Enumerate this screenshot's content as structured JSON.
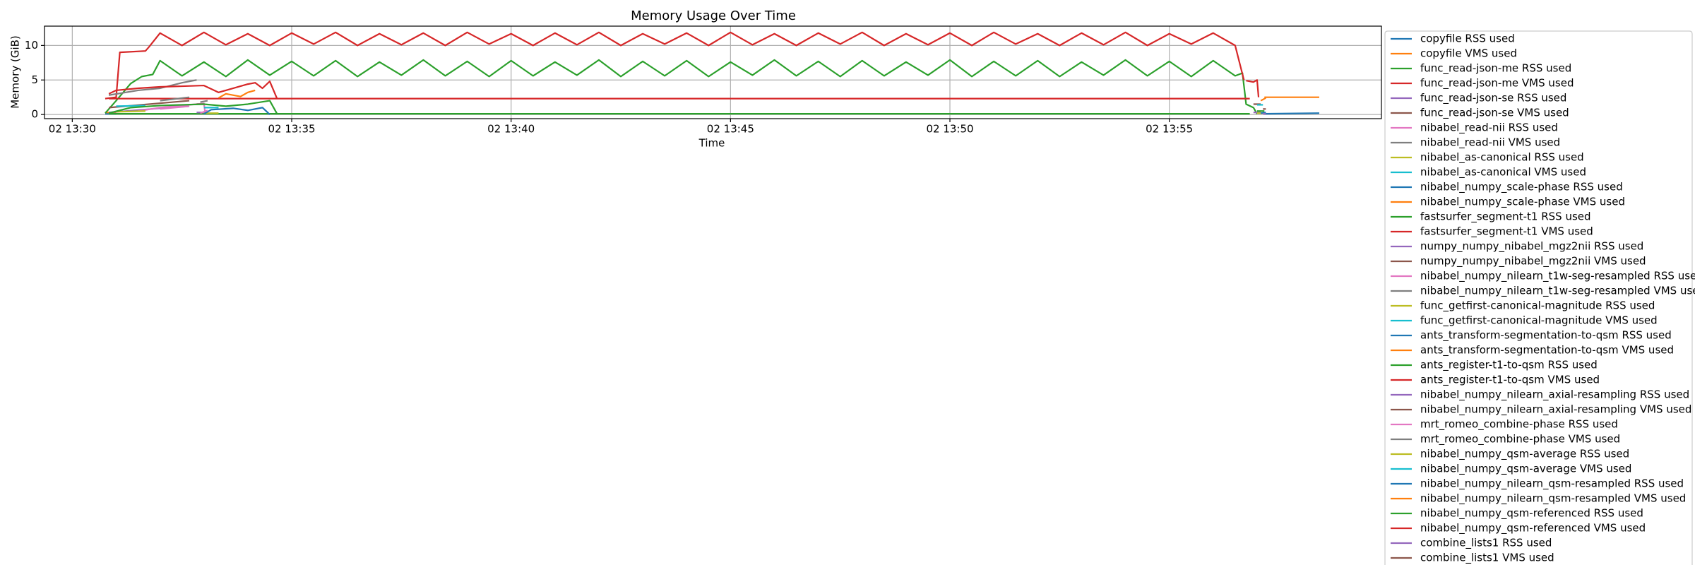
{
  "chart_data": {
    "type": "line",
    "title": "Memory Usage Over Time",
    "xlabel": "Time",
    "ylabel": "Memory (GiB)",
    "xlim": [
      "02 13:29:22",
      "02 13:59:50"
    ],
    "xticks": [
      "02 13:30",
      "02 13:35",
      "02 13:40",
      "02 13:45",
      "02 13:50",
      "02 13:55"
    ],
    "ylim": [
      -0.6,
      12.8
    ],
    "yticks": [
      0,
      5,
      10
    ],
    "grid": true,
    "legend": "outside right",
    "series": [
      {
        "name": "copyfile RSS used",
        "color": "#1f77b4",
        "x": [
          "02 13:30:45",
          "02 13:31:00"
        ],
        "values": [
          0.1,
          0.1
        ]
      },
      {
        "name": "copyfile VMS used",
        "color": "#ff7f0e",
        "x": [
          "02 13:30:45",
          "02 13:31:00"
        ],
        "values": [
          0.3,
          0.3
        ]
      },
      {
        "name": "func_read-json-me RSS used",
        "color": "#2ca02c",
        "x": [
          "02 13:30:45",
          "02 13:31:00",
          "02 13:31:20",
          "02 13:31:35",
          "02 13:31:50",
          "02 13:32:00",
          "02 13:32:30",
          "02 13:33:00",
          "02 13:33:30",
          "02 13:34:00",
          "02 13:34:30",
          "02 13:35:00",
          "02 13:35:30",
          "02 13:36:00",
          "02 13:36:30",
          "02 13:37:00",
          "02 13:37:30",
          "02 13:38:00",
          "02 13:38:30",
          "02 13:39:00",
          "02 13:39:30",
          "02 13:40:00",
          "02 13:40:30",
          "02 13:41:00",
          "02 13:41:30",
          "02 13:42:00",
          "02 13:42:30",
          "02 13:43:00",
          "02 13:43:30",
          "02 13:44:00",
          "02 13:44:30",
          "02 13:45:00",
          "02 13:45:30",
          "02 13:46:00",
          "02 13:46:30",
          "02 13:47:00",
          "02 13:47:30",
          "02 13:48:00",
          "02 13:48:30",
          "02 13:49:00",
          "02 13:49:30",
          "02 13:50:00",
          "02 13:50:30",
          "02 13:51:00",
          "02 13:51:30",
          "02 13:52:00",
          "02 13:52:30",
          "02 13:53:00",
          "02 13:53:30",
          "02 13:54:00",
          "02 13:54:30",
          "02 13:55:00",
          "02 13:55:30",
          "02 13:56:00",
          "02 13:56:30",
          "02 13:56:40",
          "02 13:56:45",
          "02 13:56:55",
          "02 13:57:00"
        ],
        "values": [
          0.2,
          2.0,
          4.5,
          5.5,
          5.8,
          7.8,
          5.6,
          7.6,
          5.5,
          7.9,
          5.7,
          7.7,
          5.6,
          7.8,
          5.5,
          7.6,
          5.7,
          7.9,
          5.6,
          7.7,
          5.5,
          7.8,
          5.6,
          7.6,
          5.7,
          7.9,
          5.5,
          7.7,
          5.6,
          7.8,
          5.5,
          7.6,
          5.7,
          7.9,
          5.6,
          7.7,
          5.5,
          7.8,
          5.6,
          7.6,
          5.7,
          7.9,
          5.5,
          7.7,
          5.6,
          7.8,
          5.5,
          7.6,
          5.7,
          7.9,
          5.6,
          7.7,
          5.5,
          7.8,
          5.6,
          6.0,
          1.5,
          1.0,
          0.1
        ]
      },
      {
        "name": "func_read-json-me VMS used",
        "color": "#d62728",
        "x": [
          "02 13:30:45",
          "02 13:31:00",
          "02 13:31:05",
          "02 13:31:40",
          "02 13:31:45",
          "02 13:32:00",
          "02 13:32:30",
          "02 13:33:00",
          "02 13:33:30",
          "02 13:34:00",
          "02 13:34:30",
          "02 13:35:00",
          "02 13:35:30",
          "02 13:36:00",
          "02 13:36:30",
          "02 13:37:00",
          "02 13:37:30",
          "02 13:38:00",
          "02 13:38:30",
          "02 13:39:00",
          "02 13:39:30",
          "02 13:40:00",
          "02 13:40:30",
          "02 13:41:00",
          "02 13:41:30",
          "02 13:42:00",
          "02 13:42:30",
          "02 13:43:00",
          "02 13:43:30",
          "02 13:44:00",
          "02 13:44:30",
          "02 13:45:00",
          "02 13:45:30",
          "02 13:46:00",
          "02 13:46:30",
          "02 13:47:00",
          "02 13:47:30",
          "02 13:48:00",
          "02 13:48:30",
          "02 13:49:00",
          "02 13:49:30",
          "02 13:50:00",
          "02 13:50:30",
          "02 13:51:00",
          "02 13:51:30",
          "02 13:52:00",
          "02 13:52:30",
          "02 13:53:00",
          "02 13:53:30",
          "02 13:54:00",
          "02 13:54:30",
          "02 13:55:00",
          "02 13:55:30",
          "02 13:56:00",
          "02 13:56:30",
          "02 13:56:42"
        ],
        "values": [
          2.3,
          2.5,
          9.0,
          9.2,
          9.8,
          11.8,
          10.0,
          11.9,
          10.1,
          11.7,
          10.0,
          11.8,
          10.2,
          11.9,
          10.0,
          11.7,
          10.1,
          11.8,
          10.0,
          11.9,
          10.2,
          11.7,
          10.0,
          11.8,
          10.1,
          11.9,
          10.0,
          11.7,
          10.2,
          11.8,
          10.0,
          11.9,
          10.1,
          11.7,
          10.0,
          11.8,
          10.2,
          11.9,
          10.0,
          11.7,
          10.1,
          11.8,
          10.0,
          11.9,
          10.2,
          11.7,
          10.0,
          11.8,
          10.1,
          11.9,
          10.0,
          11.7,
          10.2,
          11.8,
          10.0,
          5.0
        ]
      },
      {
        "name": "func_read-json-se RSS used",
        "color": "#9467bd",
        "x": [
          "02 13:30:50",
          "02 13:32:00",
          "02 13:32:40"
        ],
        "values": [
          0.3,
          0.9,
          1.2
        ]
      },
      {
        "name": "func_read-json-se VMS used",
        "color": "#8c564b",
        "x": [
          "02 13:30:50",
          "02 13:32:40"
        ],
        "values": [
          1.0,
          2.0
        ]
      },
      {
        "name": "nibabel_read-nii RSS used",
        "color": "#e377c2",
        "x": [
          "02 13:31:30",
          "02 13:32:00",
          "02 13:33:00",
          "02 13:33:02"
        ],
        "values": [
          0.5,
          1.0,
          1.6,
          0
        ]
      },
      {
        "name": "nibabel_read-nii VMS used",
        "color": "#7f7f7f",
        "x": [
          "02 13:30:50",
          "02 13:31:30",
          "02 13:32:00",
          "02 13:32:30",
          "02 13:32:50"
        ],
        "values": [
          2.8,
          3.5,
          3.8,
          4.6,
          5.0
        ]
      },
      {
        "name": "nibabel_as-canonical RSS used",
        "color": "#bcbd22",
        "x": [
          "02 13:31:00",
          "02 13:31:40"
        ],
        "values": [
          0.4,
          0.5
        ]
      },
      {
        "name": "nibabel_as-canonical VMS used",
        "color": "#17becf",
        "x": [
          "02 13:31:00",
          "02 13:31:40"
        ],
        "values": [
          1.2,
          1.3
        ]
      },
      {
        "name": "nibabel_numpy_scale-phase RSS used",
        "color": "#1f77b4",
        "x": [
          "02 13:57:10",
          "02 13:58:25"
        ],
        "values": [
          0.1,
          0.2
        ]
      },
      {
        "name": "nibabel_numpy_scale-phase VMS used",
        "color": "#ff7f0e",
        "x": [
          "02 13:57:10",
          "02 13:58:25"
        ],
        "values": [
          2.5,
          2.5
        ]
      },
      {
        "name": "fastsurfer_segment-t1 RSS used",
        "color": "#2ca02c",
        "x": [
          "02 13:30:50",
          "02 13:56:50"
        ],
        "values": [
          0.1,
          0.1
        ]
      },
      {
        "name": "fastsurfer_segment-t1 VMS used",
        "color": "#d62728",
        "x": [
          "02 13:30:50",
          "02 13:56:50"
        ],
        "values": [
          2.3,
          2.3
        ]
      },
      {
        "name": "numpy_numpy_nibabel_mgz2nii RSS used",
        "color": "#9467bd",
        "x": [
          "02 13:32:50",
          "02 13:33:00"
        ],
        "values": [
          0.3,
          0.3
        ]
      },
      {
        "name": "numpy_numpy_nibabel_mgz2nii VMS used",
        "color": "#8c564b",
        "x": [
          "02 13:32:50",
          "02 13:33:00"
        ],
        "values": [
          1.5,
          1.5
        ]
      },
      {
        "name": "nibabel_numpy_nilearn_t1w-seg-resampled RSS used",
        "color": "#e377c2",
        "x": [
          "02 13:32:00",
          "02 13:32:40"
        ],
        "values": [
          0.8,
          1.2
        ]
      },
      {
        "name": "nibabel_numpy_nilearn_t1w-seg-resampled VMS used",
        "color": "#7f7f7f",
        "x": [
          "02 13:32:00",
          "02 13:32:40"
        ],
        "values": [
          2.0,
          2.5
        ]
      },
      {
        "name": "func_getfirst-canonical-magnitude RSS used",
        "color": "#bcbd22",
        "x": [
          "02 13:33:00",
          "02 13:33:20"
        ],
        "values": [
          0.2,
          0.2
        ]
      },
      {
        "name": "func_getfirst-canonical-magnitude VMS used",
        "color": "#17becf",
        "x": [
          "02 13:33:00",
          "02 13:33:20"
        ],
        "values": [
          1.0,
          1.0
        ]
      },
      {
        "name": "ants_transform-segmentation-to-qsm RSS used",
        "color": "#1f77b4",
        "x": [
          "02 13:33:00",
          "02 13:33:10",
          "02 13:33:40",
          "02 13:34:00",
          "02 13:34:20",
          "02 13:34:30"
        ],
        "values": [
          0.1,
          0.7,
          0.9,
          0.6,
          1.0,
          0
        ]
      },
      {
        "name": "ants_transform-segmentation-to-qsm VMS used",
        "color": "#ff7f0e",
        "x": [
          "02 13:33:20",
          "02 13:33:30",
          "02 13:33:50",
          "02 13:34:00",
          "02 13:34:10"
        ],
        "values": [
          2.4,
          3.0,
          2.6,
          3.2,
          3.5
        ]
      },
      {
        "name": "ants_register-t1-to-qsm RSS used",
        "color": "#2ca02c",
        "x": [
          "02 13:30:50",
          "02 13:31:20",
          "02 13:32:00",
          "02 13:33:00",
          "02 13:33:30",
          "02 13:34:00",
          "02 13:34:30",
          "02 13:34:40"
        ],
        "values": [
          0.2,
          1.0,
          1.3,
          1.5,
          1.2,
          1.5,
          2.0,
          0.1
        ]
      },
      {
        "name": "ants_register-t1-to-qsm VMS used",
        "color": "#d62728",
        "x": [
          "02 13:30:50",
          "02 13:31:00",
          "02 13:31:30",
          "02 13:32:00",
          "02 13:33:00",
          "02 13:33:20",
          "02 13:33:30",
          "02 13:34:00",
          "02 13:34:10",
          "02 13:34:20",
          "02 13:34:30",
          "02 13:34:40"
        ],
        "values": [
          3.0,
          3.5,
          3.8,
          4.0,
          4.2,
          3.2,
          3.5,
          4.4,
          4.6,
          3.8,
          4.8,
          2.3
        ]
      },
      {
        "name": "nibabel_numpy_nilearn_axial-resampling RSS used",
        "color": "#9467bd",
        "x": [
          "02 13:56:55",
          "02 13:57:05"
        ],
        "values": [
          0.3,
          0.3
        ]
      },
      {
        "name": "nibabel_numpy_nilearn_axial-resampling VMS used",
        "color": "#8c564b",
        "x": [
          "02 13:56:55",
          "02 13:57:05"
        ],
        "values": [
          1.5,
          1.5
        ]
      },
      {
        "name": "mrt_romeo_combine-phase RSS used",
        "color": "#e377c2",
        "x": [
          "02 13:32:55",
          "02 13:33:05"
        ],
        "values": [
          0.2,
          0.6
        ]
      },
      {
        "name": "mrt_romeo_combine-phase VMS used",
        "color": "#7f7f7f",
        "x": [
          "02 13:32:55",
          "02 13:33:05"
        ],
        "values": [
          1.8,
          2.0
        ]
      },
      {
        "name": "nibabel_numpy_qsm-average RSS used",
        "color": "#bcbd22",
        "x": [
          "02 13:57:00",
          "02 13:57:08"
        ],
        "values": [
          0.2,
          0.2
        ]
      },
      {
        "name": "nibabel_numpy_qsm-average VMS used",
        "color": "#17becf",
        "x": [
          "02 13:57:00",
          "02 13:57:08"
        ],
        "values": [
          1.4,
          1.4
        ]
      },
      {
        "name": "nibabel_numpy_nilearn_qsm-resampled RSS used",
        "color": "#1f77b4",
        "x": [
          "02 13:57:05",
          "02 13:57:12"
        ],
        "values": [
          0.2,
          0.3
        ]
      },
      {
        "name": "nibabel_numpy_nilearn_qsm-resampled VMS used",
        "color": "#ff7f0e",
        "x": [
          "02 13:57:05",
          "02 13:57:12"
        ],
        "values": [
          2.0,
          2.4
        ]
      },
      {
        "name": "nibabel_numpy_qsm-referenced RSS used",
        "color": "#2ca02c",
        "x": [
          "02 13:57:00",
          "02 13:57:10"
        ],
        "values": [
          0.5,
          0.5
        ]
      },
      {
        "name": "nibabel_numpy_qsm-referenced VMS used",
        "color": "#d62728",
        "x": [
          "02 13:56:45",
          "02 13:56:55",
          "02 13:57:00",
          "02 13:57:02"
        ],
        "values": [
          4.9,
          4.7,
          5.0,
          2.5
        ]
      },
      {
        "name": "combine_lists1 RSS used",
        "color": "#9467bd",
        "x": [
          "02 13:57:08",
          "02 13:57:12"
        ],
        "values": [
          0.1,
          0.1
        ]
      },
      {
        "name": "combine_lists1 VMS used",
        "color": "#8c564b",
        "x": [
          "02 13:57:08",
          "02 13:57:12"
        ],
        "values": [
          0.8,
          0.8
        ]
      }
    ]
  }
}
